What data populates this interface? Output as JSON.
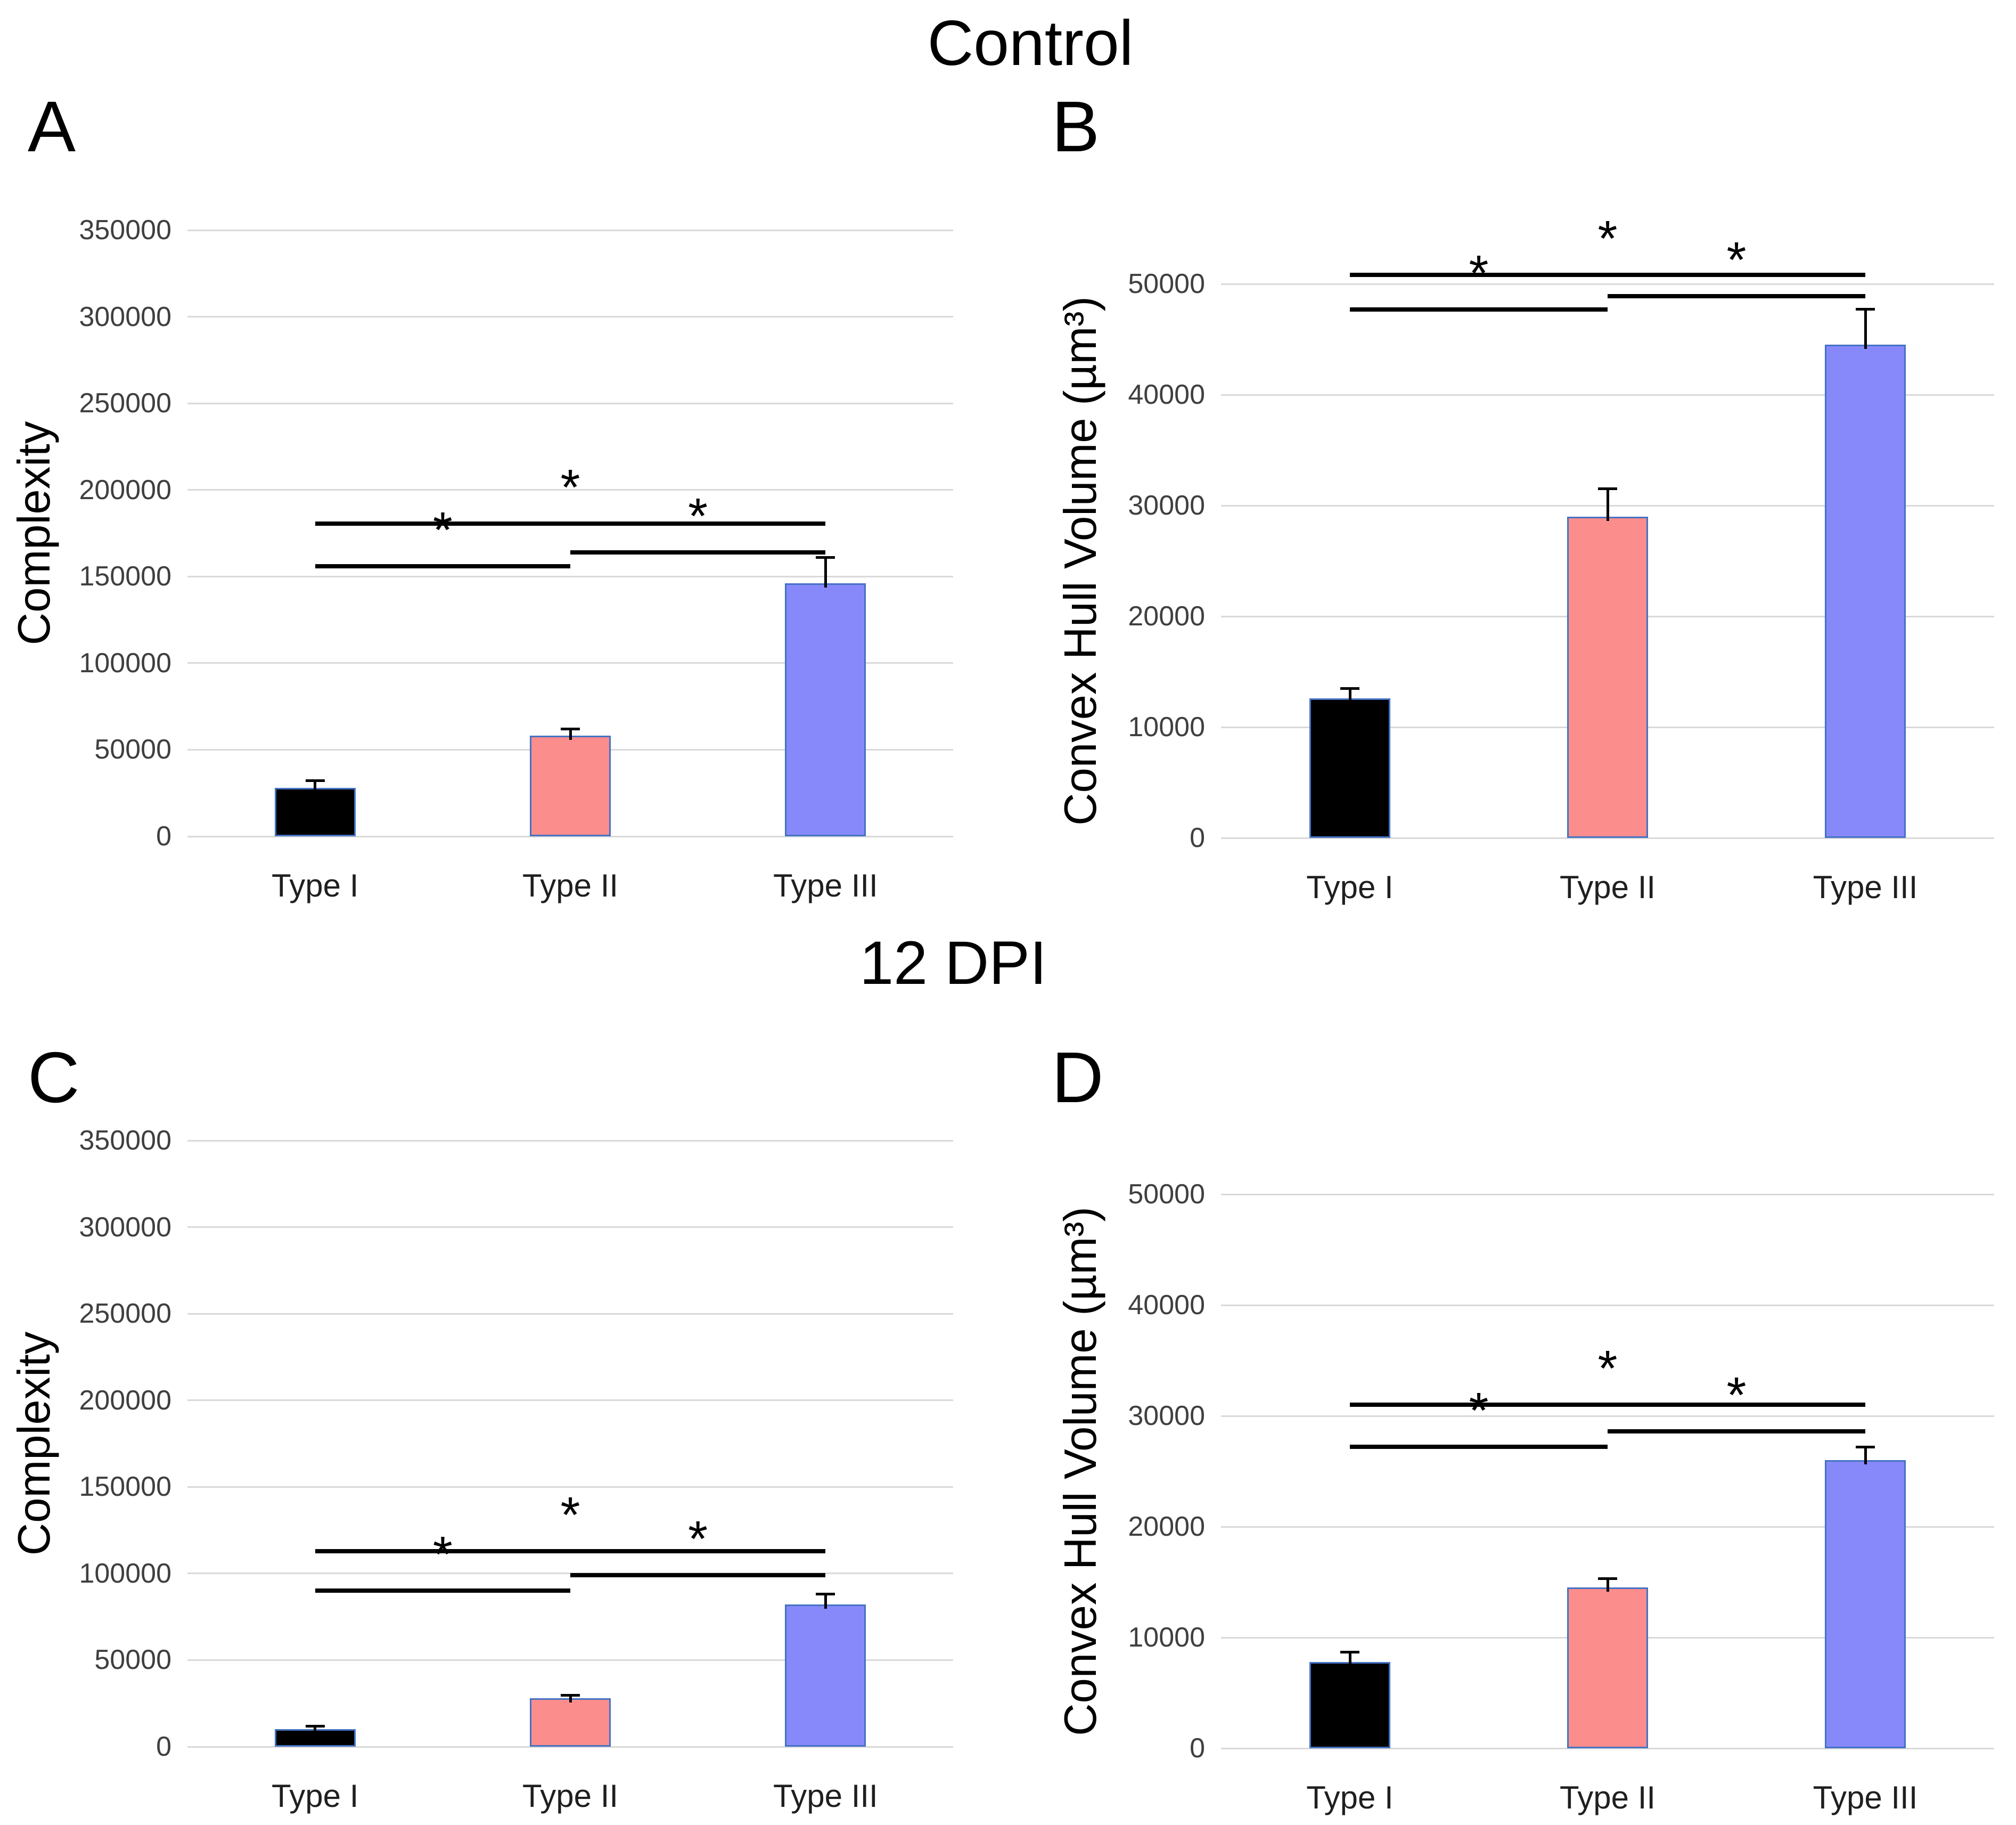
{
  "figure": {
    "titles": {
      "control": "Control",
      "dpi": "12 DPI"
    },
    "significance_symbol": "*",
    "colors": {
      "bar_fills": [
        "#000000",
        "#FB8D8D",
        "#8789FA"
      ],
      "bar_border": "#4472C4",
      "gridline": "#D9D9D9",
      "error_bar": "#000000",
      "significance": "#000000",
      "tick_text": "#3F3F3F",
      "category_text": "#1F1F1F"
    }
  },
  "chart_data": [
    {
      "type": "bar",
      "panel_label": "A",
      "group": "Control",
      "title": "",
      "xlabel": "",
      "ylabel": "Complexity",
      "categories": [
        "Type I",
        "Type II",
        "Type III"
      ],
      "values": [
        28000,
        58000,
        146000
      ],
      "errors_plus": [
        4000,
        4000,
        15000
      ],
      "ylim": [
        0,
        350000
      ],
      "ytick_step": 50000,
      "yticks": [
        0,
        50000,
        100000,
        150000,
        200000,
        250000,
        300000,
        350000
      ],
      "grid": true,
      "legend": "none",
      "significance": [
        {
          "from": 0,
          "to": 1,
          "y_value": 156000,
          "label": "*"
        },
        {
          "from": 1,
          "to": 2,
          "y_value": 164000,
          "label": "*"
        },
        {
          "from": 0,
          "to": 2,
          "y_value": 180500,
          "label": "*"
        }
      ]
    },
    {
      "type": "bar",
      "panel_label": "B",
      "group": "Control",
      "title": "",
      "xlabel": "",
      "ylabel": "Convex Hull Volume (µm³)",
      "categories": [
        "Type I",
        "Type II",
        "Type III"
      ],
      "values": [
        12600,
        29000,
        44500
      ],
      "errors_plus": [
        900,
        2500,
        3200
      ],
      "ylim": [
        0,
        50000
      ],
      "ytick_step": 10000,
      "yticks": [
        0,
        10000,
        20000,
        30000,
        40000,
        50000
      ],
      "grid": true,
      "legend": "none",
      "significance": [
        {
          "from": 0,
          "to": 1,
          "y_value": 47700,
          "label": "*"
        },
        {
          "from": 1,
          "to": 2,
          "y_value": 48900,
          "label": "*"
        },
        {
          "from": 0,
          "to": 2,
          "y_value": 50800,
          "label": "*"
        }
      ]
    },
    {
      "type": "bar",
      "panel_label": "C",
      "group": "12 DPI",
      "title": "",
      "xlabel": "",
      "ylabel": "Complexity",
      "categories": [
        "Type I",
        "Type II",
        "Type III"
      ],
      "values": [
        10000,
        28000,
        82000
      ],
      "errors_plus": [
        1800,
        1800,
        6000
      ],
      "ylim": [
        0,
        350000
      ],
      "ytick_step": 50000,
      "yticks": [
        0,
        50000,
        100000,
        150000,
        200000,
        250000,
        300000,
        350000
      ],
      "grid": true,
      "legend": "none",
      "significance": [
        {
          "from": 0,
          "to": 1,
          "y_value": 90000,
          "label": "*"
        },
        {
          "from": 1,
          "to": 2,
          "y_value": 99000,
          "label": "*"
        },
        {
          "from": 0,
          "to": 2,
          "y_value": 113000,
          "label": "*"
        }
      ]
    },
    {
      "type": "bar",
      "panel_label": "D",
      "group": "12 DPI",
      "title": "",
      "xlabel": "",
      "ylabel": "Convex Hull Volume (µm³)",
      "categories": [
        "Type I",
        "Type II",
        "Type III"
      ],
      "values": [
        7800,
        14500,
        26000
      ],
      "errors_plus": [
        900,
        800,
        1200
      ],
      "ylim": [
        0,
        50000
      ],
      "ytick_step": 10000,
      "yticks": [
        0,
        10000,
        20000,
        30000,
        40000,
        50000
      ],
      "grid": true,
      "legend": "none",
      "significance": [
        {
          "from": 0,
          "to": 1,
          "y_value": 27200,
          "label": "*"
        },
        {
          "from": 1,
          "to": 2,
          "y_value": 28600,
          "label": "*"
        },
        {
          "from": 0,
          "to": 2,
          "y_value": 31000,
          "label": "*"
        }
      ]
    }
  ]
}
